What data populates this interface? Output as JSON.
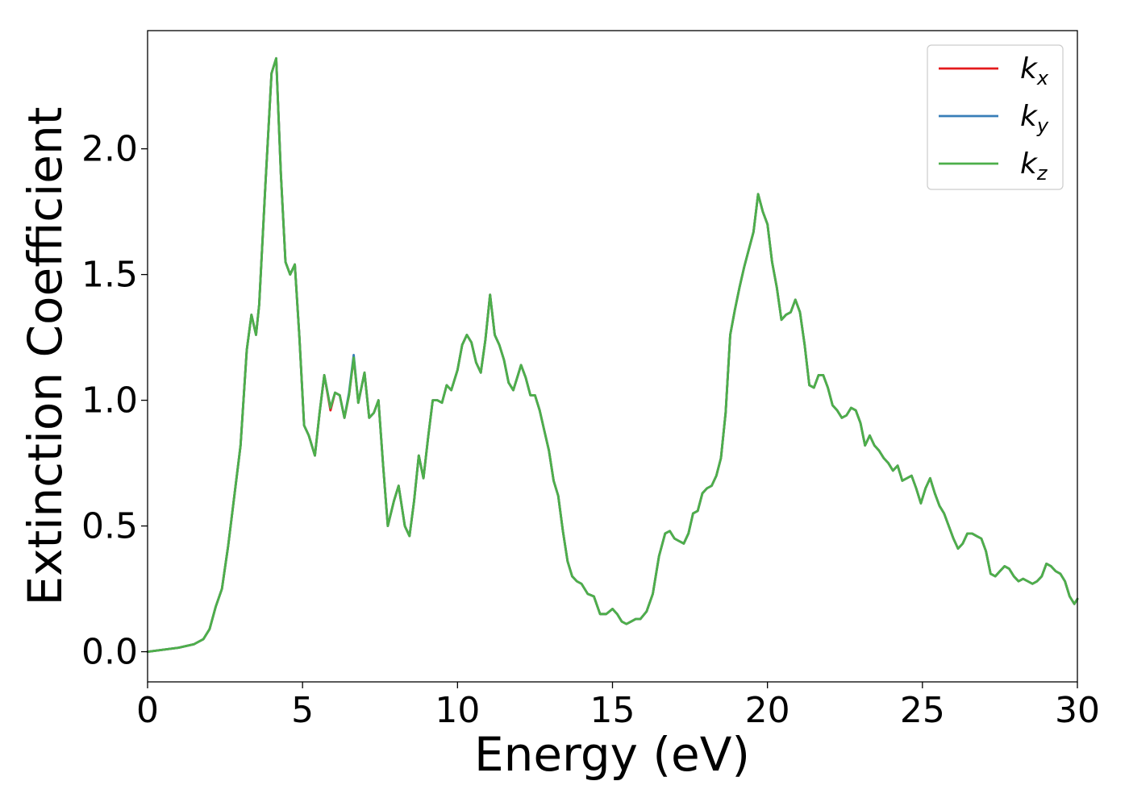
{
  "chart_data": {
    "type": "line",
    "title": "",
    "xlabel": "Energy (eV)",
    "ylabel": "Extinction Coefficient",
    "xlim": [
      0,
      30
    ],
    "ylim": [
      -0.12,
      2.47
    ],
    "xticks": [
      0,
      5,
      10,
      15,
      20,
      25,
      30
    ],
    "xtick_labels": [
      "0",
      "5",
      "10",
      "15",
      "20",
      "25",
      "30"
    ],
    "yticks": [
      0.0,
      0.5,
      1.0,
      1.5,
      2.0
    ],
    "ytick_labels": [
      "0.0",
      "0.5",
      "1.0",
      "1.5",
      "2.0"
    ],
    "grid": false,
    "legend_position": "top-right",
    "x": [
      0,
      0.5,
      1.0,
      1.5,
      1.8,
      2.0,
      2.2,
      2.4,
      2.6,
      2.8,
      3.0,
      3.2,
      3.35,
      3.5,
      3.6,
      3.8,
      4.0,
      4.15,
      4.3,
      4.45,
      4.6,
      4.75,
      4.9,
      5.05,
      5.2,
      5.4,
      5.55,
      5.7,
      5.9,
      6.05,
      6.2,
      6.35,
      6.5,
      6.65,
      6.8,
      7.0,
      7.15,
      7.3,
      7.45,
      7.6,
      7.75,
      7.95,
      8.1,
      8.3,
      8.45,
      8.6,
      8.75,
      8.9,
      9.05,
      9.2,
      9.35,
      9.5,
      9.65,
      9.8,
      10.0,
      10.15,
      10.3,
      10.45,
      10.6,
      10.75,
      10.9,
      11.05,
      11.2,
      11.35,
      11.5,
      11.65,
      11.8,
      11.95,
      12.05,
      12.2,
      12.35,
      12.5,
      12.65,
      12.8,
      12.95,
      13.1,
      13.25,
      13.4,
      13.55,
      13.7,
      13.85,
      14.0,
      14.2,
      14.4,
      14.6,
      14.8,
      15.0,
      15.15,
      15.3,
      15.45,
      15.6,
      15.75,
      15.9,
      16.1,
      16.3,
      16.5,
      16.7,
      16.85,
      17.0,
      17.15,
      17.3,
      17.45,
      17.6,
      17.75,
      17.9,
      18.05,
      18.2,
      18.35,
      18.5,
      18.65,
      18.8,
      18.95,
      19.1,
      19.25,
      19.4,
      19.55,
      19.7,
      19.85,
      20.0,
      20.15,
      20.3,
      20.45,
      20.6,
      20.75,
      20.9,
      21.05,
      21.2,
      21.35,
      21.5,
      21.65,
      21.8,
      21.95,
      22.1,
      22.25,
      22.4,
      22.55,
      22.7,
      22.85,
      23.0,
      23.15,
      23.3,
      23.45,
      23.6,
      23.75,
      23.9,
      24.05,
      24.2,
      24.35,
      24.5,
      24.65,
      24.8,
      24.95,
      25.1,
      25.25,
      25.4,
      25.55,
      25.7,
      25.85,
      26.0,
      26.15,
      26.3,
      26.45,
      26.6,
      26.75,
      26.9,
      27.05,
      27.2,
      27.35,
      27.5,
      27.65,
      27.8,
      27.95,
      28.1,
      28.25,
      28.4,
      28.55,
      28.7,
      28.85,
      29.0,
      29.15,
      29.3,
      29.45,
      29.6,
      29.75,
      29.9,
      30.0
    ],
    "series": [
      {
        "name": "k_x",
        "color": "#e41a1c",
        "values": [
          0.0,
          0.008,
          0.016,
          0.03,
          0.05,
          0.09,
          0.18,
          0.25,
          0.42,
          0.62,
          0.82,
          1.2,
          1.34,
          1.26,
          1.38,
          1.85,
          2.3,
          2.36,
          1.9,
          1.55,
          1.5,
          1.54,
          1.25,
          0.9,
          0.86,
          0.78,
          0.95,
          1.1,
          0.96,
          1.03,
          1.02,
          0.93,
          1.02,
          1.17,
          0.99,
          1.11,
          0.93,
          0.95,
          1.0,
          0.74,
          0.5,
          0.6,
          0.66,
          0.5,
          0.46,
          0.6,
          0.78,
          0.69,
          0.85,
          1.0,
          1.0,
          0.99,
          1.06,
          1.04,
          1.12,
          1.22,
          1.26,
          1.23,
          1.15,
          1.11,
          1.24,
          1.42,
          1.26,
          1.22,
          1.16,
          1.07,
          1.04,
          1.1,
          1.14,
          1.09,
          1.02,
          1.02,
          0.96,
          0.88,
          0.8,
          0.68,
          0.62,
          0.48,
          0.36,
          0.3,
          0.28,
          0.27,
          0.23,
          0.22,
          0.15,
          0.15,
          0.17,
          0.15,
          0.12,
          0.11,
          0.12,
          0.13,
          0.13,
          0.16,
          0.23,
          0.38,
          0.47,
          0.48,
          0.45,
          0.44,
          0.43,
          0.47,
          0.55,
          0.56,
          0.63,
          0.65,
          0.66,
          0.7,
          0.77,
          0.95,
          1.26,
          1.36,
          1.45,
          1.53,
          1.6,
          1.67,
          1.82,
          1.75,
          1.7,
          1.55,
          1.45,
          1.32,
          1.34,
          1.35,
          1.4,
          1.35,
          1.22,
          1.06,
          1.05,
          1.1,
          1.1,
          1.05,
          0.98,
          0.96,
          0.93,
          0.94,
          0.97,
          0.96,
          0.91,
          0.82,
          0.86,
          0.82,
          0.8,
          0.77,
          0.75,
          0.72,
          0.74,
          0.68,
          0.69,
          0.7,
          0.65,
          0.59,
          0.65,
          0.69,
          0.63,
          0.58,
          0.55,
          0.5,
          0.45,
          0.41,
          0.43,
          0.47,
          0.47,
          0.46,
          0.45,
          0.4,
          0.31,
          0.3,
          0.32,
          0.34,
          0.33,
          0.3,
          0.28,
          0.29,
          0.28,
          0.27,
          0.28,
          0.3,
          0.35,
          0.34,
          0.32,
          0.31,
          0.28,
          0.22,
          0.19,
          0.21
        ]
      },
      {
        "name": "k_y",
        "color": "#377eb8",
        "values": [
          0.0,
          0.008,
          0.016,
          0.03,
          0.05,
          0.09,
          0.18,
          0.25,
          0.42,
          0.62,
          0.82,
          1.2,
          1.34,
          1.26,
          1.38,
          1.85,
          2.3,
          2.36,
          1.9,
          1.55,
          1.5,
          1.54,
          1.25,
          0.9,
          0.86,
          0.78,
          0.95,
          1.1,
          0.97,
          1.03,
          1.02,
          0.93,
          1.03,
          1.18,
          0.99,
          1.11,
          0.93,
          0.95,
          1.0,
          0.74,
          0.5,
          0.6,
          0.66,
          0.5,
          0.46,
          0.6,
          0.78,
          0.69,
          0.85,
          1.0,
          1.0,
          0.99,
          1.06,
          1.04,
          1.12,
          1.22,
          1.26,
          1.23,
          1.15,
          1.11,
          1.24,
          1.42,
          1.26,
          1.22,
          1.16,
          1.07,
          1.04,
          1.1,
          1.14,
          1.09,
          1.02,
          1.02,
          0.96,
          0.88,
          0.8,
          0.68,
          0.62,
          0.48,
          0.36,
          0.3,
          0.28,
          0.27,
          0.23,
          0.22,
          0.15,
          0.15,
          0.17,
          0.15,
          0.12,
          0.11,
          0.12,
          0.13,
          0.13,
          0.16,
          0.23,
          0.38,
          0.47,
          0.48,
          0.45,
          0.44,
          0.43,
          0.47,
          0.55,
          0.56,
          0.63,
          0.65,
          0.66,
          0.7,
          0.77,
          0.95,
          1.26,
          1.36,
          1.45,
          1.53,
          1.6,
          1.67,
          1.82,
          1.75,
          1.7,
          1.55,
          1.45,
          1.32,
          1.34,
          1.35,
          1.4,
          1.35,
          1.22,
          1.06,
          1.05,
          1.1,
          1.1,
          1.05,
          0.98,
          0.96,
          0.93,
          0.94,
          0.97,
          0.96,
          0.91,
          0.82,
          0.86,
          0.82,
          0.8,
          0.77,
          0.75,
          0.72,
          0.74,
          0.68,
          0.69,
          0.7,
          0.65,
          0.59,
          0.65,
          0.69,
          0.63,
          0.58,
          0.55,
          0.5,
          0.45,
          0.41,
          0.43,
          0.47,
          0.47,
          0.46,
          0.45,
          0.4,
          0.31,
          0.3,
          0.32,
          0.34,
          0.33,
          0.3,
          0.28,
          0.29,
          0.28,
          0.27,
          0.28,
          0.3,
          0.35,
          0.34,
          0.32,
          0.31,
          0.28,
          0.22,
          0.19,
          0.21
        ]
      },
      {
        "name": "k_z",
        "color": "#4daf4a",
        "values": [
          0.0,
          0.008,
          0.016,
          0.03,
          0.05,
          0.09,
          0.18,
          0.25,
          0.42,
          0.62,
          0.82,
          1.2,
          1.34,
          1.26,
          1.38,
          1.85,
          2.3,
          2.36,
          1.9,
          1.55,
          1.5,
          1.54,
          1.25,
          0.9,
          0.86,
          0.78,
          0.95,
          1.1,
          0.97,
          1.03,
          1.02,
          0.93,
          1.02,
          1.17,
          0.99,
          1.11,
          0.93,
          0.95,
          1.0,
          0.74,
          0.5,
          0.6,
          0.66,
          0.5,
          0.46,
          0.6,
          0.78,
          0.69,
          0.85,
          1.0,
          1.0,
          0.99,
          1.06,
          1.04,
          1.12,
          1.22,
          1.26,
          1.23,
          1.15,
          1.11,
          1.24,
          1.42,
          1.26,
          1.22,
          1.16,
          1.07,
          1.04,
          1.1,
          1.14,
          1.09,
          1.02,
          1.02,
          0.96,
          0.88,
          0.8,
          0.68,
          0.62,
          0.48,
          0.36,
          0.3,
          0.28,
          0.27,
          0.23,
          0.22,
          0.15,
          0.15,
          0.17,
          0.15,
          0.12,
          0.11,
          0.12,
          0.13,
          0.13,
          0.16,
          0.23,
          0.38,
          0.47,
          0.48,
          0.45,
          0.44,
          0.43,
          0.47,
          0.55,
          0.56,
          0.63,
          0.65,
          0.66,
          0.7,
          0.77,
          0.95,
          1.26,
          1.36,
          1.45,
          1.53,
          1.6,
          1.67,
          1.82,
          1.75,
          1.7,
          1.55,
          1.45,
          1.32,
          1.34,
          1.35,
          1.4,
          1.35,
          1.22,
          1.06,
          1.05,
          1.1,
          1.1,
          1.05,
          0.98,
          0.96,
          0.93,
          0.94,
          0.97,
          0.96,
          0.91,
          0.82,
          0.86,
          0.82,
          0.8,
          0.77,
          0.75,
          0.72,
          0.74,
          0.68,
          0.69,
          0.7,
          0.65,
          0.59,
          0.65,
          0.69,
          0.63,
          0.58,
          0.55,
          0.5,
          0.45,
          0.41,
          0.43,
          0.47,
          0.47,
          0.46,
          0.45,
          0.4,
          0.31,
          0.3,
          0.32,
          0.34,
          0.33,
          0.3,
          0.28,
          0.29,
          0.28,
          0.27,
          0.28,
          0.3,
          0.35,
          0.34,
          0.32,
          0.31,
          0.28,
          0.22,
          0.19,
          0.21
        ]
      }
    ],
    "legend": [
      {
        "base": "k",
        "sub": "x",
        "color": "#e41a1c"
      },
      {
        "base": "k",
        "sub": "y",
        "color": "#377eb8"
      },
      {
        "base": "k",
        "sub": "z",
        "color": "#4daf4a"
      }
    ]
  }
}
